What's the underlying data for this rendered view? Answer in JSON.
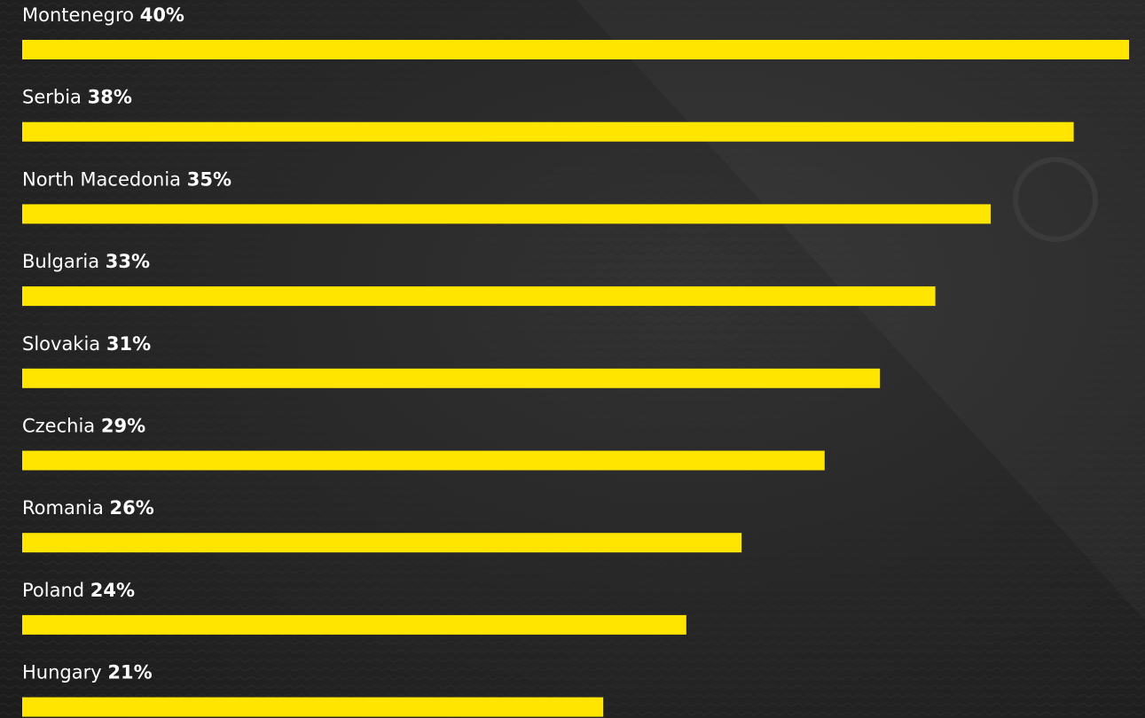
{
  "chart_data": {
    "type": "bar",
    "categories": [
      "Montenegro",
      "Serbia",
      "North Macedonia",
      "Bulgaria",
      "Slovakia",
      "Czechia",
      "Romania",
      "Poland",
      "Hungary"
    ],
    "values": [
      40,
      38,
      35,
      33,
      31,
      29,
      26,
      24,
      21
    ],
    "value_labels": [
      "40%",
      "38%",
      "35%",
      "33%",
      "31%",
      "29%",
      "26%",
      "24%",
      "21%"
    ],
    "color": "#ffe500",
    "orientation": "horizontal"
  }
}
